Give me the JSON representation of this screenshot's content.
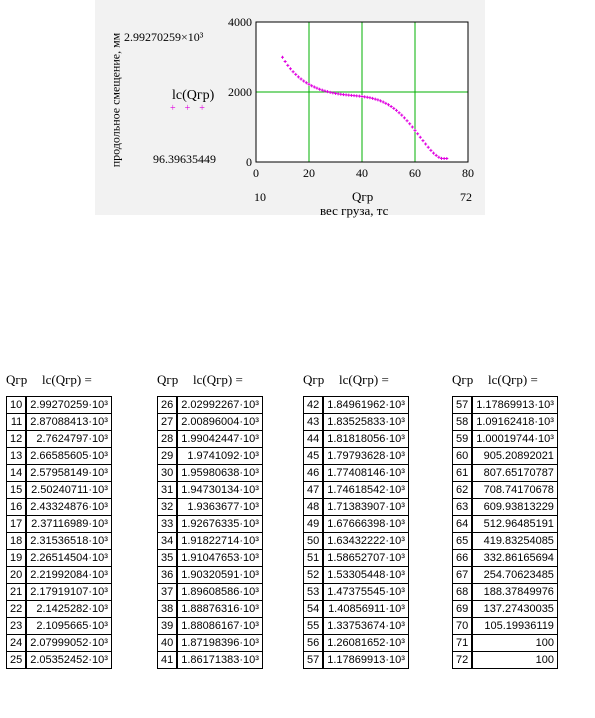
{
  "chart_data": {
    "type": "scatter",
    "xlabel": "Qгр",
    "xunit": "вес груза, тс",
    "ylabel": "продольное смещение, мм",
    "series_label": "lc(Qгр)",
    "y_marker_top": "2.99270259×10³",
    "y_marker_bottom": "96.39635449",
    "x_marker_left": "10",
    "x_marker_right": "72",
    "xlim": [
      0,
      80
    ],
    "ylim": [
      0,
      4000
    ],
    "xticks": [
      "0",
      "20",
      "40",
      "60",
      "80"
    ],
    "yticks": [
      "0",
      "2000",
      "4000"
    ],
    "grid": true,
    "color": "#e000e0",
    "x": [
      10,
      11,
      12,
      13,
      14,
      15,
      16,
      17,
      18,
      19,
      20,
      21,
      22,
      23,
      24,
      25,
      26,
      27,
      28,
      29,
      30,
      31,
      32,
      33,
      34,
      35,
      36,
      37,
      38,
      39,
      40,
      41,
      42,
      43,
      44,
      45,
      46,
      47,
      48,
      49,
      50,
      51,
      52,
      53,
      54,
      55,
      56,
      57,
      58,
      59,
      60,
      61,
      62,
      63,
      64,
      65,
      66,
      67,
      68,
      69,
      70,
      71,
      72
    ],
    "y": [
      2992.70259,
      2870.88413,
      2762.4797,
      2665.85605,
      2579.58149,
      2502.40711,
      2433.24876,
      2371.16989,
      2315.36518,
      2265.14504,
      2219.92084,
      2179.19107,
      2142.5282,
      2109.5665,
      2079.99052,
      2053.52452,
      2029.92267,
      2008.96004,
      1990.42447,
      1974.1092,
      1959.80638,
      1947.30134,
      1936.3677,
      1926.76335,
      1918.22714,
      1910.47653,
      1903.20591,
      1896.08586,
      1888.76316,
      1880.86167,
      1871.98396,
      1861.71383,
      1849.61962,
      1835.25833,
      1818.18056,
      1797.93628,
      1774.08146,
      1746.18542,
      1713.83907,
      1676.66398,
      1634.32222,
      1586.52707,
      1533.05448,
      1473.75545,
      1408.56911,
      1337.53674,
      1260.81652,
      1178.69913,
      1091.62418,
      1000.19744,
      905.20892021,
      807.65170787,
      708.74170678,
      609.93813229,
      512.96485191,
      419.83254085,
      332.86165694,
      254.70623485,
      188.37849976,
      137.27430035,
      105.19936119,
      100,
      100
    ]
  },
  "tables": [
    {
      "arg_header": "Qгр",
      "fn_header": "lc(Qгр) =",
      "rows": [
        [
          "10",
          "2.99270259·10³"
        ],
        [
          "11",
          "2.87088413·10³"
        ],
        [
          "12",
          "2.7624797·10³"
        ],
        [
          "13",
          "2.66585605·10³"
        ],
        [
          "14",
          "2.57958149·10³"
        ],
        [
          "15",
          "2.50240711·10³"
        ],
        [
          "16",
          "2.43324876·10³"
        ],
        [
          "17",
          "2.37116989·10³"
        ],
        [
          "18",
          "2.31536518·10³"
        ],
        [
          "19",
          "2.26514504·10³"
        ],
        [
          "20",
          "2.21992084·10³"
        ],
        [
          "21",
          "2.17919107·10³"
        ],
        [
          "22",
          "2.1425282·10³"
        ],
        [
          "23",
          "2.1095665·10³"
        ],
        [
          "24",
          "2.07999052·10³"
        ],
        [
          "25",
          "2.05352452·10³"
        ]
      ]
    },
    {
      "arg_header": "Qгр",
      "fn_header": "lc(Qгр) =",
      "rows": [
        [
          "26",
          "2.02992267·10³"
        ],
        [
          "27",
          "2.00896004·10³"
        ],
        [
          "28",
          "1.99042447·10³"
        ],
        [
          "29",
          "1.9741092·10³"
        ],
        [
          "30",
          "1.95980638·10³"
        ],
        [
          "31",
          "1.94730134·10³"
        ],
        [
          "32",
          "1.9363677·10³"
        ],
        [
          "33",
          "1.92676335·10³"
        ],
        [
          "34",
          "1.91822714·10³"
        ],
        [
          "35",
          "1.91047653·10³"
        ],
        [
          "36",
          "1.90320591·10³"
        ],
        [
          "37",
          "1.89608586·10³"
        ],
        [
          "38",
          "1.88876316·10³"
        ],
        [
          "39",
          "1.88086167·10³"
        ],
        [
          "40",
          "1.87198396·10³"
        ],
        [
          "41",
          "1.86171383·10³"
        ]
      ]
    },
    {
      "arg_header": "Qгр",
      "fn_header": "lc(Qгр) =",
      "rows": [
        [
          "42",
          "1.84961962·10³"
        ],
        [
          "43",
          "1.83525833·10³"
        ],
        [
          "44",
          "1.81818056·10³"
        ],
        [
          "45",
          "1.79793628·10³"
        ],
        [
          "46",
          "1.77408146·10³"
        ],
        [
          "47",
          "1.74618542·10³"
        ],
        [
          "48",
          "1.71383907·10³"
        ],
        [
          "49",
          "1.67666398·10³"
        ],
        [
          "50",
          "1.63432222·10³"
        ],
        [
          "51",
          "1.58652707·10³"
        ],
        [
          "52",
          "1.53305448·10³"
        ],
        [
          "53",
          "1.47375545·10³"
        ],
        [
          "54",
          "1.40856911·10³"
        ],
        [
          "55",
          "1.33753674·10³"
        ],
        [
          "56",
          "1.26081652·10³"
        ],
        [
          "57",
          "1.17869913·10³"
        ]
      ]
    },
    {
      "arg_header": "Qгр",
      "fn_header": "lc(Qгр) =",
      "rows": [
        [
          "57",
          "1.17869913·10³"
        ],
        [
          "58",
          "1.09162418·10³"
        ],
        [
          "59",
          "1.00019744·10³"
        ],
        [
          "60",
          "905.20892021"
        ],
        [
          "61",
          "807.65170787"
        ],
        [
          "62",
          "708.74170678"
        ],
        [
          "63",
          "609.93813229"
        ],
        [
          "64",
          "512.96485191"
        ],
        [
          "65",
          "419.83254085"
        ],
        [
          "66",
          "332.86165694"
        ],
        [
          "67",
          "254.70623485"
        ],
        [
          "68",
          "188.37849976"
        ],
        [
          "69",
          "137.27430035"
        ],
        [
          "70",
          "105.19936119"
        ],
        [
          "71",
          "100"
        ],
        [
          "72",
          "100"
        ]
      ]
    }
  ]
}
